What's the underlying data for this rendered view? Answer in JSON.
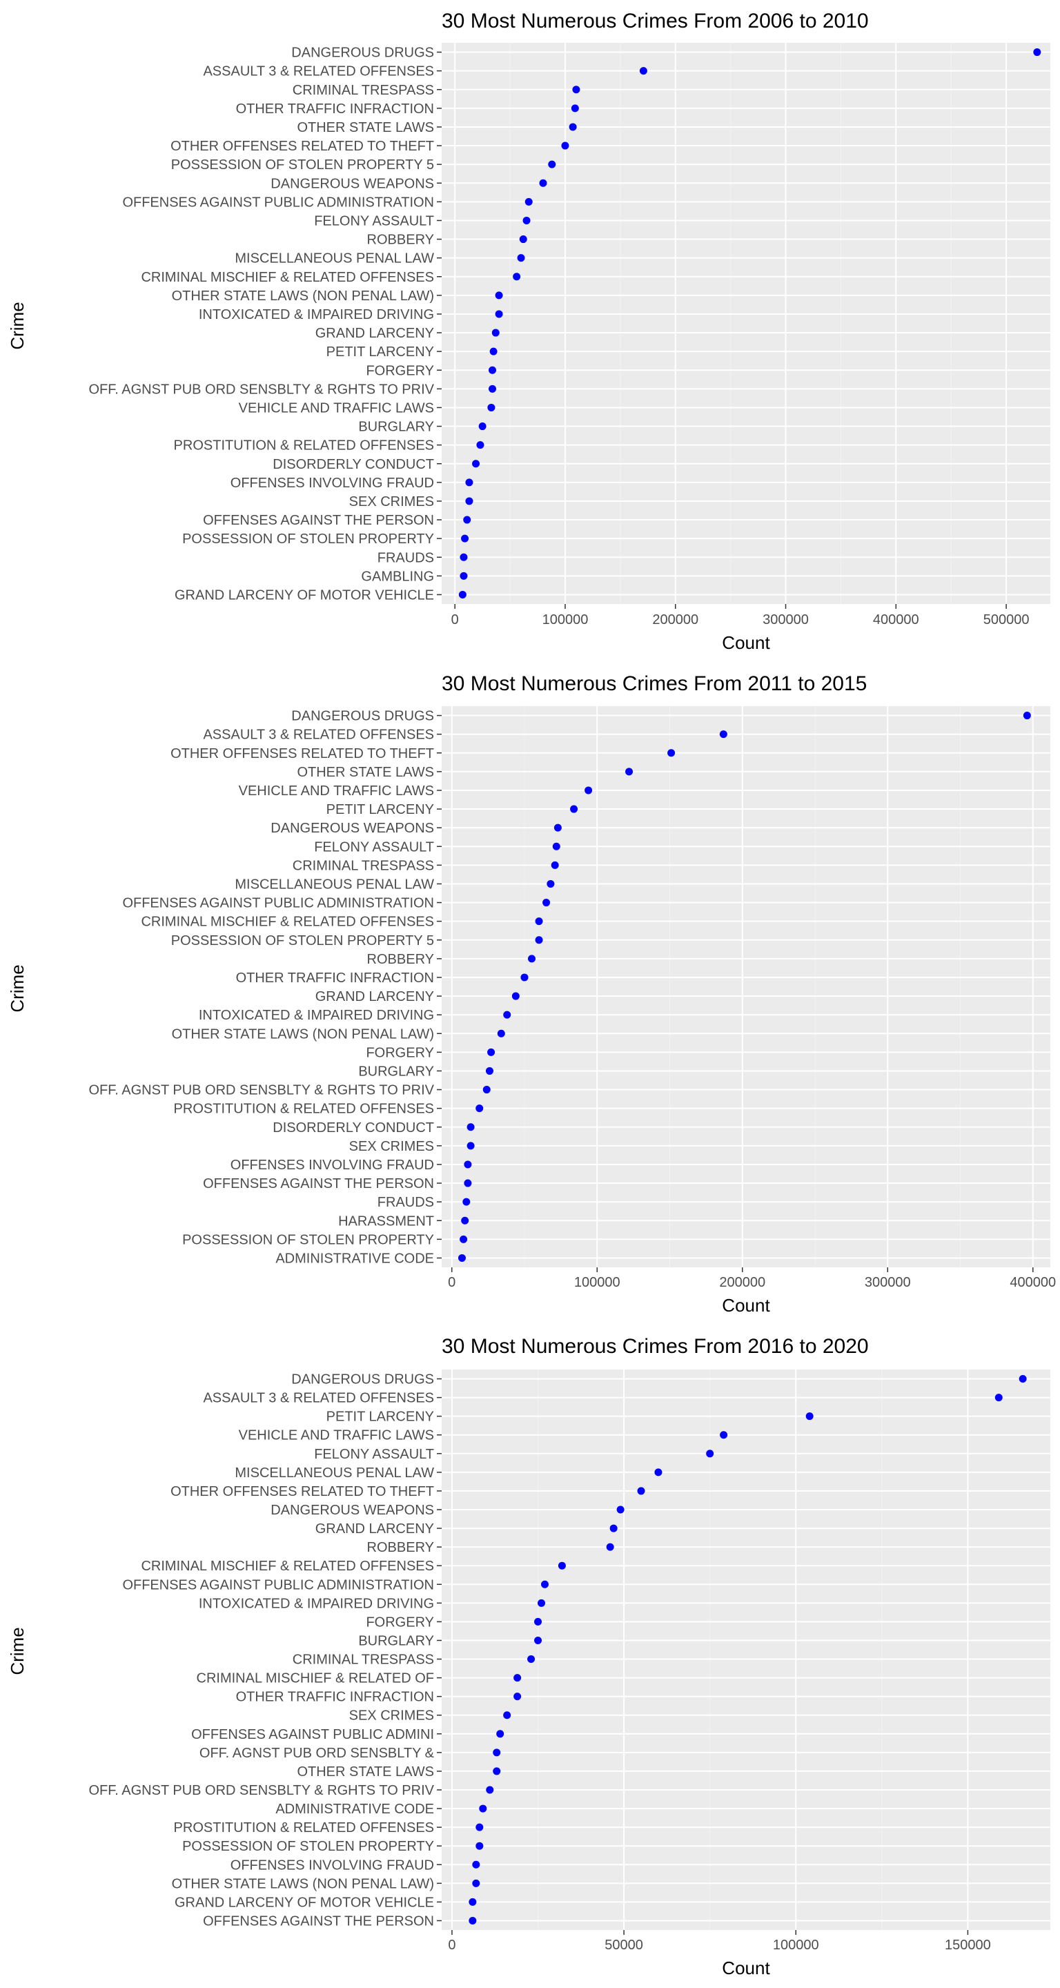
{
  "colors": {
    "panel_background": "#EBEBEB",
    "grid_major": "#FFFFFF",
    "grid_minor": "#F2F2F2",
    "point": "#0000FF",
    "tick_text": "#4D4D4D",
    "title_text": "#000000"
  },
  "chart_data": [
    {
      "type": "scatter",
      "title": "30 Most Numerous Crimes From 2006 to 2010",
      "xlabel": "Count",
      "ylabel": "Crime",
      "xlim": [
        -12000,
        540000
      ],
      "xticks": [
        0,
        100000,
        200000,
        300000,
        400000,
        500000
      ],
      "xtick_labels": [
        "0",
        "100000",
        "200000",
        "300000",
        "400000",
        "500000"
      ],
      "grid": true,
      "categories": [
        "DANGEROUS DRUGS",
        "ASSAULT 3 & RELATED OFFENSES",
        "CRIMINAL TRESPASS",
        "OTHER TRAFFIC INFRACTION",
        "OTHER STATE LAWS",
        "OTHER OFFENSES RELATED TO THEFT",
        "POSSESSION OF STOLEN PROPERTY 5",
        "DANGEROUS WEAPONS",
        "OFFENSES AGAINST PUBLIC ADMINISTRATION",
        "FELONY ASSAULT",
        "ROBBERY",
        "MISCELLANEOUS PENAL LAW",
        "CRIMINAL MISCHIEF & RELATED OFFENSES",
        "OTHER STATE LAWS (NON PENAL LAW)",
        "INTOXICATED & IMPAIRED DRIVING",
        "GRAND LARCENY",
        "PETIT LARCENY",
        "FORGERY",
        "OFF. AGNST PUB ORD SENSBLTY & RGHTS TO PRIV",
        "VEHICLE AND TRAFFIC LAWS",
        "BURGLARY",
        "PROSTITUTION & RELATED OFFENSES",
        "DISORDERLY CONDUCT",
        "OFFENSES INVOLVING FRAUD",
        "SEX CRIMES",
        "OFFENSES AGAINST THE PERSON",
        "POSSESSION OF STOLEN PROPERTY",
        "FRAUDS",
        "GAMBLING",
        "GRAND LARCENY OF MOTOR VEHICLE"
      ],
      "values": [
        528000,
        171000,
        110000,
        109000,
        107000,
        100000,
        88000,
        80000,
        67000,
        65000,
        62000,
        60000,
        56000,
        40000,
        40000,
        37000,
        35000,
        34000,
        34000,
        33000,
        25000,
        23000,
        19000,
        13000,
        13000,
        11000,
        9000,
        8000,
        8000,
        7000
      ]
    },
    {
      "type": "scatter",
      "title": "30 Most Numerous Crimes From 2011 to 2015",
      "xlabel": "Count",
      "ylabel": "Crime",
      "xlim": [
        -7000,
        412000
      ],
      "xticks": [
        0,
        100000,
        200000,
        300000,
        400000
      ],
      "xtick_labels": [
        "0",
        "100000",
        "200000",
        "300000",
        "400000"
      ],
      "grid": true,
      "categories": [
        "DANGEROUS DRUGS",
        "ASSAULT 3 & RELATED OFFENSES",
        "OTHER OFFENSES RELATED TO THEFT",
        "OTHER STATE LAWS",
        "VEHICLE AND TRAFFIC LAWS",
        "PETIT LARCENY",
        "DANGEROUS WEAPONS",
        "FELONY ASSAULT",
        "CRIMINAL TRESPASS",
        "MISCELLANEOUS PENAL LAW",
        "OFFENSES AGAINST PUBLIC ADMINISTRATION",
        "CRIMINAL MISCHIEF & RELATED OFFENSES",
        "POSSESSION OF STOLEN PROPERTY 5",
        "ROBBERY",
        "OTHER TRAFFIC INFRACTION",
        "GRAND LARCENY",
        "INTOXICATED & IMPAIRED DRIVING",
        "OTHER STATE LAWS (NON PENAL LAW)",
        "FORGERY",
        "BURGLARY",
        "OFF. AGNST PUB ORD SENSBLTY & RGHTS TO PRIV",
        "PROSTITUTION & RELATED OFFENSES",
        "DISORDERLY CONDUCT",
        "SEX CRIMES",
        "OFFENSES INVOLVING FRAUD",
        "OFFENSES AGAINST THE PERSON",
        "FRAUDS",
        "HARASSMENT",
        "POSSESSION OF STOLEN PROPERTY",
        "ADMINISTRATIVE CODE"
      ],
      "values": [
        396000,
        187000,
        151000,
        122000,
        94000,
        84000,
        73000,
        72000,
        71000,
        68000,
        65000,
        60000,
        60000,
        55000,
        50000,
        44000,
        38000,
        34000,
        27000,
        26000,
        24000,
        19000,
        13000,
        13000,
        11000,
        11000,
        10000,
        9000,
        8000,
        7000
      ]
    },
    {
      "type": "scatter",
      "title": "30 Most Numerous Crimes From 2016 to 2020",
      "xlabel": "Count",
      "ylabel": "Crime",
      "xlim": [
        -3000,
        174000
      ],
      "xticks": [
        0,
        50000,
        100000,
        150000
      ],
      "xtick_labels": [
        "0",
        "50000",
        "100000",
        "150000"
      ],
      "grid": true,
      "categories": [
        "DANGEROUS DRUGS",
        "ASSAULT 3 & RELATED OFFENSES",
        "PETIT LARCENY",
        "VEHICLE AND TRAFFIC LAWS",
        "FELONY ASSAULT",
        "MISCELLANEOUS PENAL LAW",
        "OTHER OFFENSES RELATED TO THEFT",
        "DANGEROUS WEAPONS",
        "GRAND LARCENY",
        "ROBBERY",
        "CRIMINAL MISCHIEF & RELATED OFFENSES",
        "OFFENSES AGAINST PUBLIC ADMINISTRATION",
        "INTOXICATED & IMPAIRED DRIVING",
        "FORGERY",
        "BURGLARY",
        "CRIMINAL TRESPASS",
        "CRIMINAL MISCHIEF & RELATED OF",
        "OTHER TRAFFIC INFRACTION",
        "SEX CRIMES",
        "OFFENSES AGAINST PUBLIC ADMINI",
        "OFF. AGNST PUB ORD SENSBLTY &",
        "OTHER STATE LAWS",
        "OFF. AGNST PUB ORD SENSBLTY & RGHTS TO PRIV",
        "ADMINISTRATIVE CODE",
        "PROSTITUTION & RELATED OFFENSES",
        "POSSESSION OF STOLEN PROPERTY",
        "OFFENSES INVOLVING FRAUD",
        "OTHER STATE LAWS (NON PENAL LAW)",
        "GRAND LARCENY OF MOTOR VEHICLE",
        "OFFENSES AGAINST THE PERSON"
      ],
      "values": [
        166000,
        159000,
        104000,
        79000,
        75000,
        60000,
        55000,
        49000,
        47000,
        46000,
        32000,
        27000,
        26000,
        25000,
        25000,
        23000,
        19000,
        19000,
        16000,
        14000,
        13000,
        13000,
        11000,
        9000,
        8000,
        8000,
        7000,
        7000,
        6000,
        6000
      ]
    }
  ]
}
